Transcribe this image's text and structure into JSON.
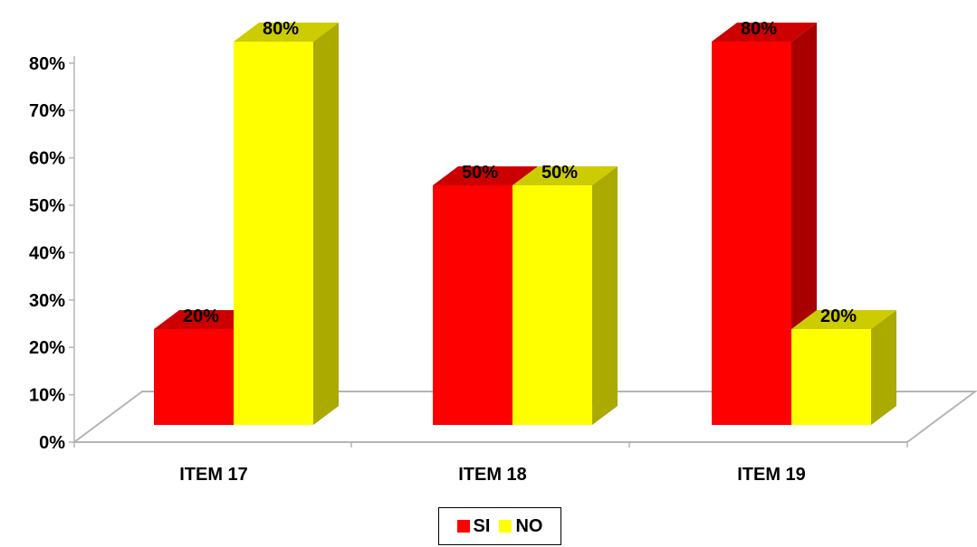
{
  "chart_data": {
    "type": "bar",
    "categories": [
      "ITEM 17",
      "ITEM 18",
      "ITEM 19"
    ],
    "series": [
      {
        "name": "SI",
        "values": [
          20,
          50,
          80
        ],
        "color": "#ff0000",
        "top_color": "#cc0000",
        "side_color": "#a80000"
      },
      {
        "name": "NO",
        "values": [
          80,
          50,
          20
        ],
        "color": "#ffff00",
        "top_color": "#cccc00",
        "side_color": "#aaaa00"
      }
    ],
    "data_labels": [
      [
        "20%",
        "50%",
        "80%"
      ],
      [
        "80%",
        "50%",
        "20%"
      ]
    ],
    "y_ticks": [
      "0%",
      "10%",
      "20%",
      "30%",
      "40%",
      "50%",
      "60%",
      "70%",
      "80%"
    ],
    "ylim": [
      0,
      80
    ],
    "style": "3d-clustered-column",
    "legend": {
      "position": "bottom",
      "bordered": true
    },
    "grid": false
  }
}
